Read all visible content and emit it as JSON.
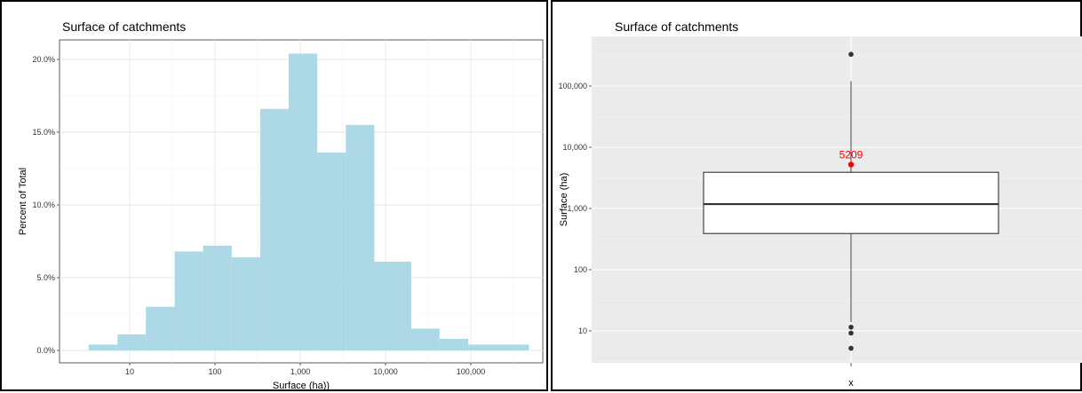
{
  "chart_data": [
    {
      "type": "bar",
      "title": "Surface of catchments",
      "xlabel": "Surface (ha))",
      "ylabel": "Percent of Total",
      "x_scale": "log10",
      "x_ticks": [
        10,
        100,
        1000,
        10000,
        100000
      ],
      "x_tick_labels": [
        "10",
        "100",
        "1,000",
        "10,000",
        "100,000"
      ],
      "y_ticks": [
        0,
        5,
        10,
        15,
        20
      ],
      "y_tick_labels": [
        "0.0%",
        "5.0%",
        "10.0%",
        "15.0%",
        "20.0%"
      ],
      "ylim": [
        0,
        21
      ],
      "grid": true,
      "bar_color": "#add8e6",
      "bins": [
        {
          "from": 3.3,
          "to": 7.2,
          "value": 0.4
        },
        {
          "from": 7.2,
          "to": 15.5,
          "value": 1.1
        },
        {
          "from": 15.5,
          "to": 33.6,
          "value": 3.0
        },
        {
          "from": 33.6,
          "to": 72.5,
          "value": 6.8
        },
        {
          "from": 72.5,
          "to": 157,
          "value": 7.2
        },
        {
          "from": 157,
          "to": 339,
          "value": 6.4
        },
        {
          "from": 339,
          "to": 732,
          "value": 16.6
        },
        {
          "from": 732,
          "to": 1580,
          "value": 20.4
        },
        {
          "from": 1580,
          "to": 3420,
          "value": 13.6
        },
        {
          "from": 3420,
          "to": 7400,
          "value": 15.5
        },
        {
          "from": 7400,
          "to": 20000,
          "value": 6.1
        },
        {
          "from": 20000,
          "to": 43000,
          "value": 1.5
        },
        {
          "from": 43000,
          "to": 93000,
          "value": 0.8
        },
        {
          "from": 93000,
          "to": 480000,
          "value": 0.4
        }
      ]
    },
    {
      "type": "box",
      "title": "Surface of catchments",
      "xlabel": "x",
      "ylabel": "Surface (ha)",
      "y_scale": "log10",
      "y_ticks": [
        10,
        100,
        1000,
        10000,
        100000
      ],
      "y_tick_labels": [
        "10",
        "100",
        "1,000",
        "10,000",
        "100,000"
      ],
      "ylim": [
        4,
        260000
      ],
      "panel_background": "#ebebeb",
      "box": {
        "q1": 390,
        "median": 1180,
        "q3": 3900,
        "whisker_low": 14,
        "whisker_high": 120000
      },
      "outliers": [
        330000,
        11.5,
        9.2,
        5.2
      ],
      "mean": {
        "value": 5209,
        "label": "5209",
        "color": "#ff0000"
      }
    }
  ]
}
